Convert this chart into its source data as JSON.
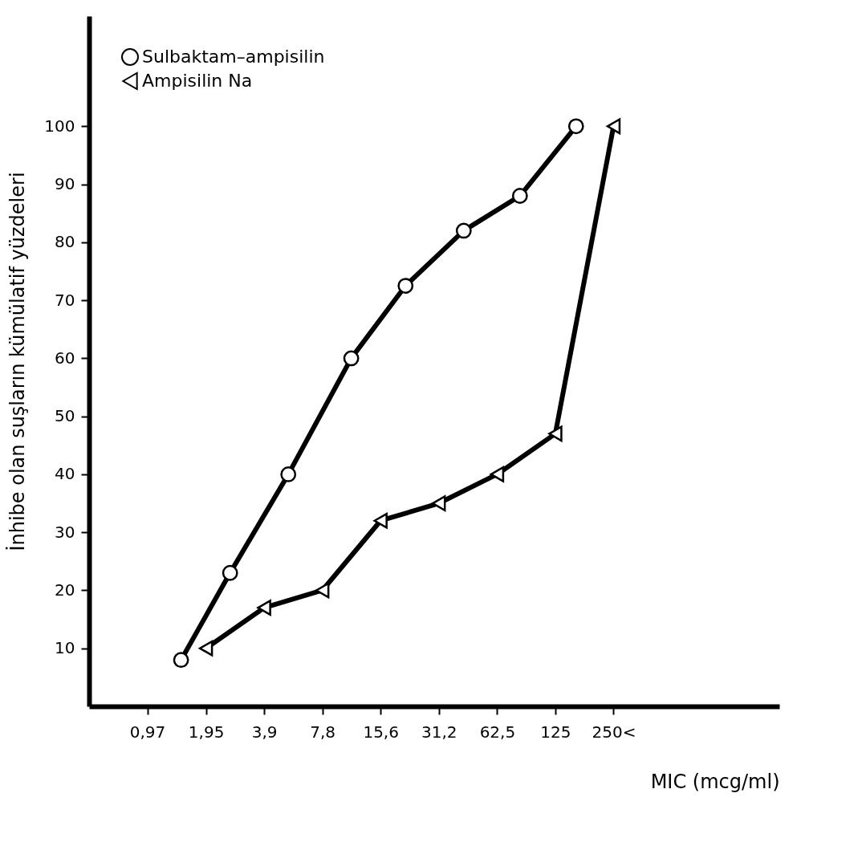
{
  "chart_data": {
    "type": "line",
    "xlabel": "MIC (mcg/ml)",
    "ylabel": "İnhibe olan suşların kümülatif yüzdeleri",
    "log": "x",
    "xlim": [
      0.485,
      1800
    ],
    "ylim": [
      0,
      119
    ],
    "xticks": [
      {
        "value": 0.97,
        "label": "0,97"
      },
      {
        "value": 1.95,
        "label": "1,95"
      },
      {
        "value": 3.9,
        "label": "3,9"
      },
      {
        "value": 7.8,
        "label": "7,8"
      },
      {
        "value": 15.6,
        "label": "15,6"
      },
      {
        "value": 31.2,
        "label": "31,2"
      },
      {
        "value": 62.5,
        "label": "62,5"
      },
      {
        "value": 125,
        "label": "125"
      },
      {
        "value": 250,
        "label": "250<"
      }
    ],
    "yticks": [
      10,
      20,
      30,
      40,
      50,
      60,
      70,
      80,
      90,
      100
    ],
    "grid": false,
    "legend": "top left",
    "line_style": "solid",
    "series": [
      {
        "name": "Sulbaktam–ampisilin",
        "color": "#000000",
        "marker": "circle",
        "x": [
          1.45,
          2.6,
          5.2,
          11,
          21,
          42,
          82,
          160
        ],
        "values": [
          8,
          23,
          40,
          60,
          72.5,
          82,
          88,
          100
        ]
      },
      {
        "name": "Ampisilin Na",
        "color": "#000000",
        "marker": "triangle",
        "x": [
          1.95,
          3.9,
          7.8,
          15.6,
          31.2,
          62.5,
          125,
          250
        ],
        "values": [
          10,
          17,
          20,
          32,
          35,
          40,
          47,
          100
        ]
      }
    ]
  }
}
